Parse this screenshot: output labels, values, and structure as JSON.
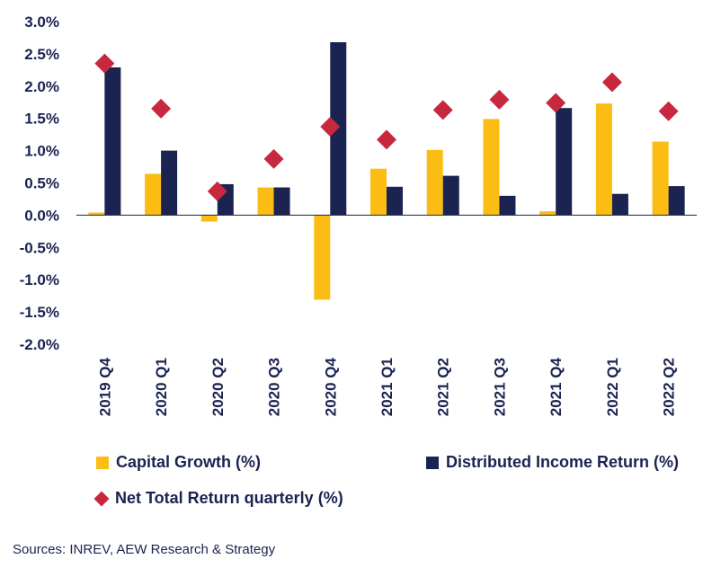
{
  "colors": {
    "capital_growth": "#fbbd13",
    "distributed_income": "#1b2350",
    "net_total_return": "#c8283e",
    "text": "#1b2350"
  },
  "chart_data": {
    "type": "bar",
    "categories": [
      "2019 Q4",
      "2020 Q1",
      "2020 Q2",
      "2020 Q3",
      "2020 Q4",
      "2021 Q1",
      "2021 Q2",
      "2021 Q3",
      "2021 Q4",
      "2022 Q1",
      "2022 Q2"
    ],
    "series": [
      {
        "name": "Capital Growth (%)",
        "type": "bar",
        "values": [
          0.04,
          0.64,
          -0.1,
          0.43,
          -1.31,
          0.72,
          1.01,
          1.49,
          0.06,
          1.73,
          1.14
        ]
      },
      {
        "name": "Distributed Income Return (%)",
        "type": "bar",
        "values": [
          2.29,
          1.0,
          0.48,
          0.43,
          2.68,
          0.44,
          0.61,
          0.3,
          1.66,
          0.33,
          0.45
        ]
      },
      {
        "name": "Net Total Return quarterly (%)",
        "type": "scatter",
        "values": [
          2.35,
          1.65,
          0.37,
          0.87,
          1.37,
          1.17,
          1.63,
          1.79,
          1.74,
          2.06,
          1.61
        ]
      }
    ],
    "ylim": [
      -2.0,
      3.0
    ],
    "yticks": [
      "3.0%",
      "2.5%",
      "2.0%",
      "1.5%",
      "1.0%",
      "0.5%",
      "0.0%",
      "-0.5%",
      "-1.0%",
      "-1.5%",
      "-2.0%"
    ],
    "grid": false,
    "legend": "bottom"
  },
  "source": "Sources: INREV, AEW Research & Strategy"
}
